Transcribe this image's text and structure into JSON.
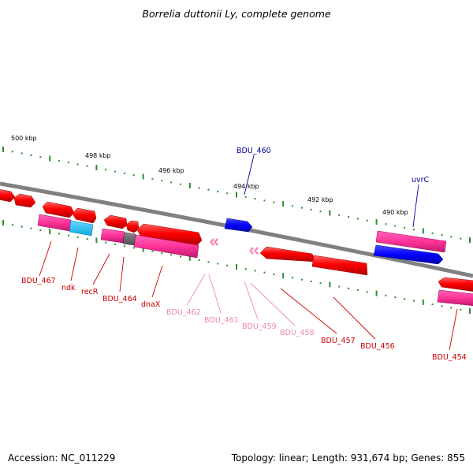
{
  "title": "Borrelia duttonii Ly, complete genome",
  "footer": {
    "accession": "Accession: NC_011229",
    "stats": "Topology: linear; Length: 931,674 bp; Genes: 855"
  },
  "colors": {
    "backbone": "#808080",
    "tick": "#2e8b2e",
    "tick_label": "#000000",
    "gene_red": "#ff0000",
    "gene_pink": "#ff3399",
    "gene_cyan": "#1ec8ff",
    "gene_gray": "#707070",
    "gene_blue": "#0000ff",
    "small_gene_pink": "#ff88bb",
    "label_red": "#cc0000",
    "label_pink": "#ee88aa",
    "label_blue": "#000099"
  },
  "scale_labels": [
    {
      "id": "500",
      "text": "500 kbp"
    },
    {
      "id": "498",
      "text": "498 kbp"
    },
    {
      "id": "496",
      "text": "496 kbp"
    },
    {
      "id": "494",
      "text": "494 kbp"
    },
    {
      "id": "492",
      "text": "492 kbp"
    },
    {
      "id": "490",
      "text": "490 kbp"
    }
  ],
  "gene_labels": [
    {
      "id": "bdu467",
      "text": "BDU_467",
      "color": "red"
    },
    {
      "id": "ndk",
      "text": "ndk",
      "color": "red"
    },
    {
      "id": "recr",
      "text": "recR",
      "color": "red"
    },
    {
      "id": "bdu464",
      "text": "BDU_464",
      "color": "red"
    },
    {
      "id": "dnax",
      "text": "dnaX",
      "color": "red"
    },
    {
      "id": "bdu462",
      "text": "BDU_462",
      "color": "pink"
    },
    {
      "id": "bdu461",
      "text": "BDU_461",
      "color": "pink"
    },
    {
      "id": "bdu459",
      "text": "BDU_459",
      "color": "pink"
    },
    {
      "id": "bdu458",
      "text": "BDU_458",
      "color": "pink"
    },
    {
      "id": "bdu457",
      "text": "BDU_457",
      "color": "red"
    },
    {
      "id": "bdu456",
      "text": "BDU_456",
      "color": "red"
    },
    {
      "id": "bdu454",
      "text": "BDU_454",
      "color": "red"
    },
    {
      "id": "bdu460",
      "text": "BDU_460",
      "color": "blue"
    },
    {
      "id": "uvrc",
      "text": "uvrC",
      "color": "blue"
    }
  ]
}
